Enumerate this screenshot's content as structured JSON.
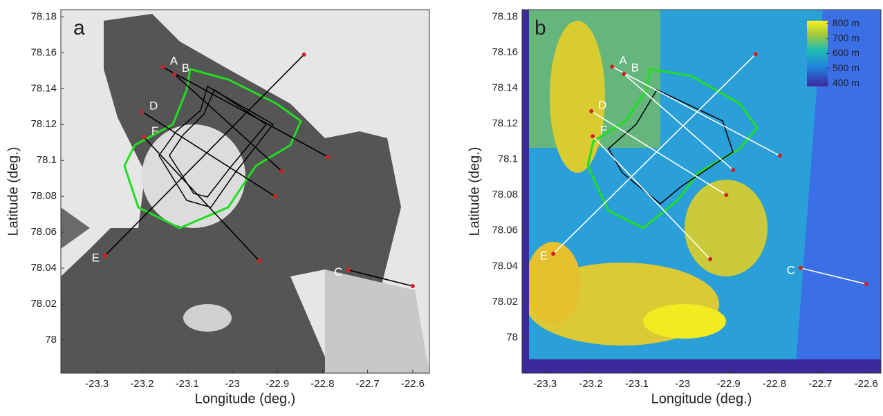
{
  "chart_data": [
    {
      "type": "map",
      "label": "a",
      "xlabel": "Longitude (deg.)",
      "ylabel": "Latitude (deg.)",
      "xlim": [
        -23.38,
        -22.563
      ],
      "ylim": [
        77.9815,
        78.184
      ],
      "xticks": [
        -23.3,
        -23.2,
        -23.1,
        -23,
        -22.9,
        -22.8,
        -22.7,
        -22.6
      ],
      "yticks": [
        78,
        78.02,
        78.04,
        78.06,
        78.08,
        78.1,
        78.12,
        78.14,
        78.16,
        78.18
      ],
      "line_color": "#000000",
      "lines": [
        {
          "name": "A",
          "lon": [
            -23.154,
            -22.788
          ],
          "lat": [
            78.152,
            78.102
          ]
        },
        {
          "name": "B",
          "lon": [
            -23.128,
            -22.89
          ],
          "lat": [
            78.148,
            78.094
          ]
        },
        {
          "name": "D",
          "lon": [
            -23.199,
            -22.905
          ],
          "lat": [
            78.127,
            78.08
          ]
        },
        {
          "name": "F",
          "lon": [
            -23.196,
            -22.94
          ],
          "lat": [
            78.113,
            78.044
          ]
        },
        {
          "name": "E",
          "lon": [
            -23.282,
            -22.841
          ],
          "lat": [
            78.047,
            78.159
          ]
        },
        {
          "name": "C",
          "lon": [
            -22.743,
            -22.6
          ],
          "lat": [
            78.039,
            78.03
          ]
        }
      ]
    },
    {
      "type": "map",
      "label": "b",
      "xlabel": "Longitude (deg.)",
      "ylabel": "Latitude (deg.)",
      "xlim": [
        -23.35,
        -22.568
      ],
      "ylim": [
        77.98,
        78.184
      ],
      "xticks": [
        -23.3,
        -23.2,
        -23.1,
        -23,
        -22.9,
        -22.8,
        -22.7,
        -22.6
      ],
      "yticks": [
        78,
        78.02,
        78.04,
        78.06,
        78.08,
        78.1,
        78.12,
        78.14,
        78.16,
        78.18
      ],
      "line_color": "#ffffff",
      "lines": [
        {
          "name": "A",
          "lon": [
            -23.154,
            -22.788
          ],
          "lat": [
            78.152,
            78.102
          ]
        },
        {
          "name": "B",
          "lon": [
            -23.128,
            -22.89
          ],
          "lat": [
            78.148,
            78.094
          ]
        },
        {
          "name": "D",
          "lon": [
            -23.199,
            -22.905
          ],
          "lat": [
            78.127,
            78.08
          ]
        },
        {
          "name": "F",
          "lon": [
            -23.196,
            -22.94
          ],
          "lat": [
            78.113,
            78.044
          ]
        },
        {
          "name": "E",
          "lon": [
            -23.282,
            -22.841
          ],
          "lat": [
            78.047,
            78.159
          ]
        },
        {
          "name": "C",
          "lon": [
            -22.743,
            -22.6
          ],
          "lat": [
            78.039,
            78.03
          ]
        }
      ],
      "colorbar": {
        "lim": [
          380,
          820
        ],
        "ticks": [
          {
            "value": 800,
            "label": "800 m"
          },
          {
            "value": 700,
            "label": "700 m"
          },
          {
            "value": 600,
            "label": "600 m"
          },
          {
            "value": 500,
            "label": "500 m"
          },
          {
            "value": 400,
            "label": "400 m"
          }
        ]
      }
    }
  ]
}
